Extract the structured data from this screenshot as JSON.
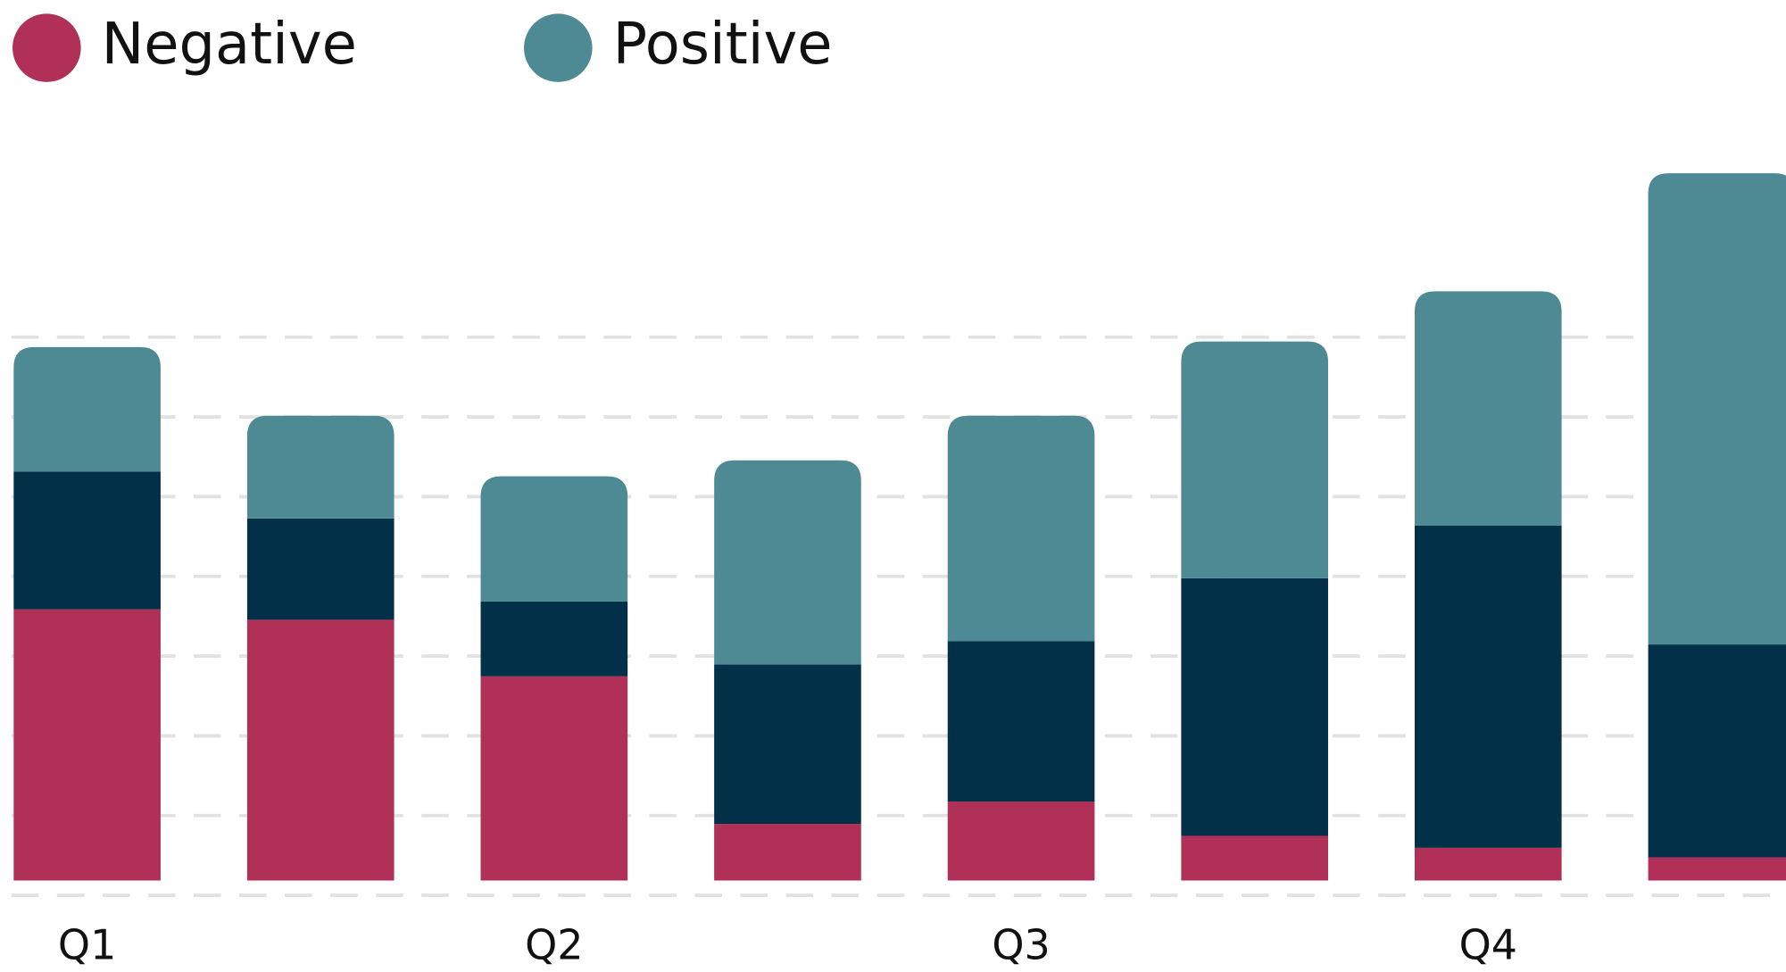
{
  "chart_data": {
    "type": "stacked-bar",
    "categories": [
      "Q1",
      null,
      "Q2",
      null,
      "Q3",
      null,
      "Q4",
      null
    ],
    "series": [
      {
        "name": "Negative",
        "color": "#b03058",
        "values": [
          34,
          32.7,
          25.6,
          7.1,
          9.9,
          5.6,
          4.1,
          2.9
        ]
      },
      {
        "color": "#033049",
        "values": [
          17.3,
          12.7,
          9.4,
          20,
          20.1,
          32.3,
          40.4,
          26.7
        ]
      },
      {
        "name": "Positive",
        "color": "#4e8a93",
        "values": [
          15.6,
          12.9,
          15.7,
          25.6,
          28.3,
          29.7,
          29.4,
          59.1
        ]
      }
    ],
    "ylim": [
      0,
      100
    ],
    "grid": true,
    "legend": "top-left"
  }
}
